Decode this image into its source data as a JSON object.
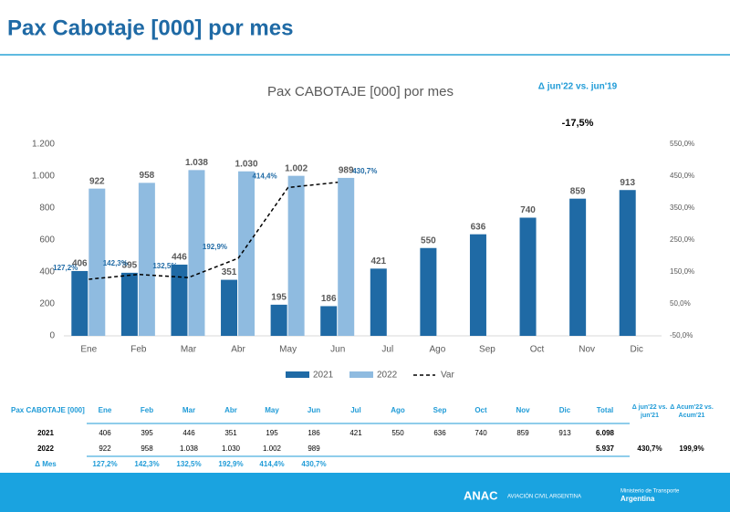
{
  "header": {
    "title": "Pax Cabotaje [000] por mes"
  },
  "chart_data": {
    "type": "bar",
    "title": "Pax CABOTAJE [000] por mes",
    "annotations": [
      "Δ jun'22 vs. jun'19",
      "-17,5%"
    ],
    "categories": [
      "Ene",
      "Feb",
      "Mar",
      "Abr",
      "May",
      "Jun",
      "Jul",
      "Ago",
      "Sep",
      "Oct",
      "Nov",
      "Dic"
    ],
    "series": [
      {
        "name": "2021",
        "color": "#1f6aa5",
        "values": [
          406,
          395,
          446,
          351,
          195,
          186,
          421,
          550,
          636,
          740,
          859,
          913
        ]
      },
      {
        "name": "2022",
        "color": "#8fbbe0",
        "values": [
          922,
          958,
          1038,
          1030,
          1002,
          989,
          null,
          null,
          null,
          null,
          null,
          null
        ],
        "value_labels": [
          "922",
          "958",
          "1.038",
          "1.030",
          "1.002",
          "989",
          null,
          null,
          null,
          null,
          null,
          null
        ]
      },
      {
        "name": "Var",
        "color": "#000000",
        "axis": "y2",
        "style": "dashed",
        "values": [
          127.2,
          142.3,
          132.5,
          192.9,
          414.4,
          430.7,
          null,
          null,
          null,
          null,
          null,
          null
        ],
        "value_labels": [
          "127,2%",
          "142,3%",
          "132,5%",
          "192,9%",
          "414,4%",
          "430,7%",
          null,
          null,
          null,
          null,
          null,
          null
        ]
      }
    ],
    "ylim": [
      0,
      1200
    ],
    "yticks": [
      0,
      200,
      400,
      600,
      800,
      {
        "value": 1000,
        "label": "1.000"
      },
      {
        "value": 1200,
        "label": "1.200"
      }
    ],
    "y2lim": [
      -50,
      550
    ],
    "y2ticks": [
      {
        "value": -50,
        "label": "-50,0%"
      },
      {
        "value": 50,
        "label": "50,0%"
      },
      {
        "value": 150,
        "label": "150,0%"
      },
      {
        "value": 250,
        "label": "250,0%"
      },
      {
        "value": 350,
        "label": "350,0%"
      },
      {
        "value": 450,
        "label": "450,0%"
      },
      {
        "value": 550,
        "label": "550,0%"
      }
    ],
    "legend": "bottom"
  },
  "table": {
    "columns": [
      "Pax CABOTAJE [000]",
      "Ene",
      "Feb",
      "Mar",
      "Abr",
      "May",
      "Jun",
      "Jul",
      "Ago",
      "Sep",
      "Oct",
      "Nov",
      "Dic",
      "Total",
      "Δ jun'22 vs. jun'21",
      "Δ Acum'22 vs. Acum'21"
    ],
    "rows": [
      [
        "2021",
        "406",
        "395",
        "446",
        "351",
        "195",
        "186",
        "421",
        "550",
        "636",
        "740",
        "859",
        "913",
        "6.098"
      ],
      [
        "2022",
        "922",
        "958",
        "1.038",
        "1.030",
        "1.002",
        "989",
        "",
        "",
        "",
        "",
        "",
        "",
        "5.937",
        "430,7%",
        "199,9%"
      ],
      [
        "Δ Mes",
        "127,2%",
        "142,3%",
        "132,5%",
        "192,9%",
        "414,4%",
        "430,7%"
      ]
    ]
  },
  "footer": {
    "left": "ANAC",
    "left_sub": "AVIACIÓN CIVIL ARGENTINA",
    "right_top": "Ministerio de Transporte",
    "right": "Argentina"
  }
}
